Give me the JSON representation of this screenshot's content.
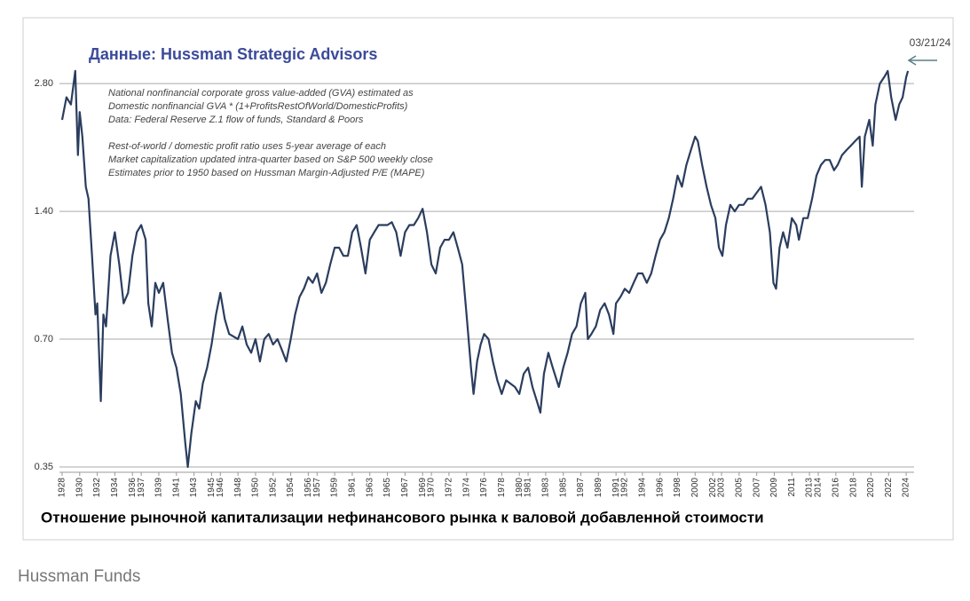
{
  "chart_data": {
    "type": "line",
    "title": "Данные: Hussman Strategic Advisors",
    "notes": [
      "National nonfinancial corporate gross value-added (GVA) estimated as",
      "Domestic nonfinancial GVA * (1+ProfitsRestOfWorld/DomesticProfits)",
      "Data: Federal Reserve Z.1 flow of funds, Standard & Poors",
      "Rest-of-world / domestic profit ratio uses 5-year average of each",
      "Market capitalization updated intra-quarter based on S&P 500 weekly close",
      "Estimates prior to 1950 based on Hussman Margin-Adjusted P/E (MAPE)"
    ],
    "annotation": "03/21/24",
    "caption": "Отношение рыночной капитализации нефинансового рынка к валовой добавленной стоимости",
    "source": "Hussman Funds",
    "log_y": true,
    "grid": true,
    "x": [
      1928.0,
      1928.5,
      1929.0,
      1929.5,
      1929.8,
      1930.0,
      1930.3,
      1930.7,
      1931.0,
      1931.4,
      1931.8,
      1932.0,
      1932.4,
      1932.7,
      1933.0,
      1933.5,
      1934.0,
      1934.5,
      1935.0,
      1935.5,
      1936.0,
      1936.5,
      1937.0,
      1937.5,
      1937.8,
      1938.2,
      1938.6,
      1939.0,
      1939.5,
      1940.0,
      1940.5,
      1941.0,
      1941.5,
      1942.0,
      1942.3,
      1942.7,
      1943.2,
      1943.6,
      1944.0,
      1944.5,
      1945.0,
      1945.5,
      1946.0,
      1946.5,
      1947.0,
      1948.0,
      1948.5,
      1949.0,
      1949.5,
      1950.0,
      1950.5,
      1951.0,
      1951.5,
      1952.0,
      1952.5,
      1953.0,
      1953.5,
      1954.0,
      1954.5,
      1955.0,
      1955.5,
      1956.0,
      1956.5,
      1957.0,
      1957.5,
      1958.0,
      1958.5,
      1959.0,
      1959.5,
      1960.0,
      1960.5,
      1961.0,
      1961.5,
      1962.0,
      1962.5,
      1963.0,
      1963.5,
      1964.0,
      1964.5,
      1965.0,
      1965.5,
      1966.0,
      1966.5,
      1967.0,
      1967.5,
      1968.0,
      1968.5,
      1969.0,
      1969.5,
      1970.0,
      1970.5,
      1971.0,
      1971.5,
      1972.0,
      1972.5,
      1973.0,
      1973.5,
      1974.0,
      1974.5,
      1974.8,
      1975.2,
      1975.6,
      1976.0,
      1976.5,
      1977.0,
      1977.5,
      1978.0,
      1978.5,
      1979.0,
      1979.5,
      1980.0,
      1980.5,
      1981.0,
      1981.5,
      1982.0,
      1982.4,
      1982.8,
      1983.3,
      1983.8,
      1984.5,
      1985.0,
      1985.5,
      1986.0,
      1986.5,
      1987.0,
      1987.5,
      1987.8,
      1988.2,
      1988.7,
      1989.2,
      1989.7,
      1990.2,
      1990.7,
      1991.0,
      1991.5,
      1992.0,
      1992.5,
      1993.0,
      1993.5,
      1994.0,
      1994.5,
      1995.0,
      1995.5,
      1996.0,
      1996.5,
      1997.0,
      1997.5,
      1998.0,
      1998.5,
      1999.0,
      1999.5,
      2000.0,
      2000.3,
      2000.8,
      2001.3,
      2001.8,
      2002.3,
      2002.7,
      2003.1,
      2003.5,
      2004.0,
      2004.5,
      2005.0,
      2005.5,
      2006.0,
      2006.5,
      2007.0,
      2007.5,
      2008.0,
      2008.5,
      2008.9,
      2009.2,
      2009.6,
      2010.0,
      2010.5,
      2011.0,
      2011.5,
      2011.8,
      2012.3,
      2012.8,
      2013.3,
      2013.8,
      2014.3,
      2014.8,
      2015.3,
      2015.8,
      2016.2,
      2016.7,
      2017.2,
      2017.7,
      2018.2,
      2018.7,
      2018.95,
      2019.3,
      2019.8,
      2020.2,
      2020.5,
      2021.0,
      2021.5,
      2021.9,
      2022.3,
      2022.8,
      2023.2,
      2023.6,
      2024.0,
      2024.2
    ],
    "series": [
      {
        "color": "#2b3d5e",
        "values": [
          2.3,
          2.6,
          2.5,
          3.0,
          1.9,
          2.4,
          2.1,
          1.6,
          1.5,
          1.1,
          0.8,
          0.85,
          0.5,
          0.8,
          0.75,
          1.1,
          1.25,
          1.05,
          0.85,
          0.9,
          1.1,
          1.25,
          1.3,
          1.2,
          0.85,
          0.75,
          0.95,
          0.9,
          0.95,
          0.78,
          0.65,
          0.6,
          0.52,
          0.4,
          0.35,
          0.42,
          0.5,
          0.48,
          0.55,
          0.6,
          0.68,
          0.8,
          0.9,
          0.78,
          0.72,
          0.7,
          0.75,
          0.68,
          0.65,
          0.7,
          0.62,
          0.7,
          0.72,
          0.68,
          0.7,
          0.66,
          0.62,
          0.7,
          0.8,
          0.88,
          0.92,
          0.98,
          0.95,
          1.0,
          0.9,
          0.95,
          1.05,
          1.15,
          1.15,
          1.1,
          1.1,
          1.25,
          1.3,
          1.15,
          1.0,
          1.2,
          1.25,
          1.3,
          1.3,
          1.3,
          1.32,
          1.25,
          1.1,
          1.25,
          1.3,
          1.3,
          1.35,
          1.42,
          1.25,
          1.05,
          1.0,
          1.15,
          1.2,
          1.2,
          1.25,
          1.15,
          1.05,
          0.8,
          0.6,
          0.52,
          0.62,
          0.68,
          0.72,
          0.7,
          0.62,
          0.56,
          0.52,
          0.56,
          0.55,
          0.54,
          0.52,
          0.58,
          0.6,
          0.54,
          0.5,
          0.47,
          0.58,
          0.65,
          0.6,
          0.54,
          0.6,
          0.65,
          0.72,
          0.75,
          0.85,
          0.9,
          0.7,
          0.72,
          0.75,
          0.82,
          0.85,
          0.8,
          0.72,
          0.85,
          0.88,
          0.92,
          0.9,
          0.95,
          1.0,
          1.0,
          0.95,
          1.0,
          1.1,
          1.2,
          1.25,
          1.35,
          1.5,
          1.7,
          1.6,
          1.8,
          1.95,
          2.1,
          2.05,
          1.8,
          1.6,
          1.45,
          1.35,
          1.15,
          1.1,
          1.3,
          1.45,
          1.4,
          1.45,
          1.45,
          1.5,
          1.5,
          1.55,
          1.6,
          1.45,
          1.25,
          0.95,
          0.92,
          1.15,
          1.25,
          1.15,
          1.35,
          1.3,
          1.2,
          1.35,
          1.35,
          1.5,
          1.7,
          1.8,
          1.85,
          1.85,
          1.75,
          1.8,
          1.9,
          1.95,
          2.0,
          2.05,
          2.1,
          1.6,
          2.1,
          2.3,
          2.0,
          2.5,
          2.8,
          2.9,
          3.0,
          2.6,
          2.3,
          2.5,
          2.6,
          2.9,
          3.0
        ]
      }
    ],
    "xlim": [
      1927.7,
      2024.9
    ],
    "xticks": [
      1928,
      1930,
      1932,
      1934,
      1936,
      1937,
      1939,
      1941,
      1943,
      1945,
      1946,
      1948,
      1950,
      1952,
      1954,
      1956,
      1957,
      1959,
      1961,
      1963,
      1965,
      1967,
      1969,
      1970,
      1972,
      1974,
      1976,
      1978,
      1980,
      1981,
      1983,
      1985,
      1987,
      1989,
      1991,
      1992,
      1994,
      1996,
      1998,
      2000,
      2002,
      2003,
      2005,
      2007,
      2009,
      2011,
      2013,
      2014,
      2016,
      2018,
      2020,
      2022,
      2024
    ],
    "ylim": [
      0.34,
      3.6
    ],
    "yticks": [
      {
        "value": 0.35,
        "label": "0.35"
      },
      {
        "value": 0.7,
        "label": "0.70"
      },
      {
        "value": 1.4,
        "label": "1.40"
      },
      {
        "value": 2.8,
        "label": "2.80"
      }
    ]
  }
}
